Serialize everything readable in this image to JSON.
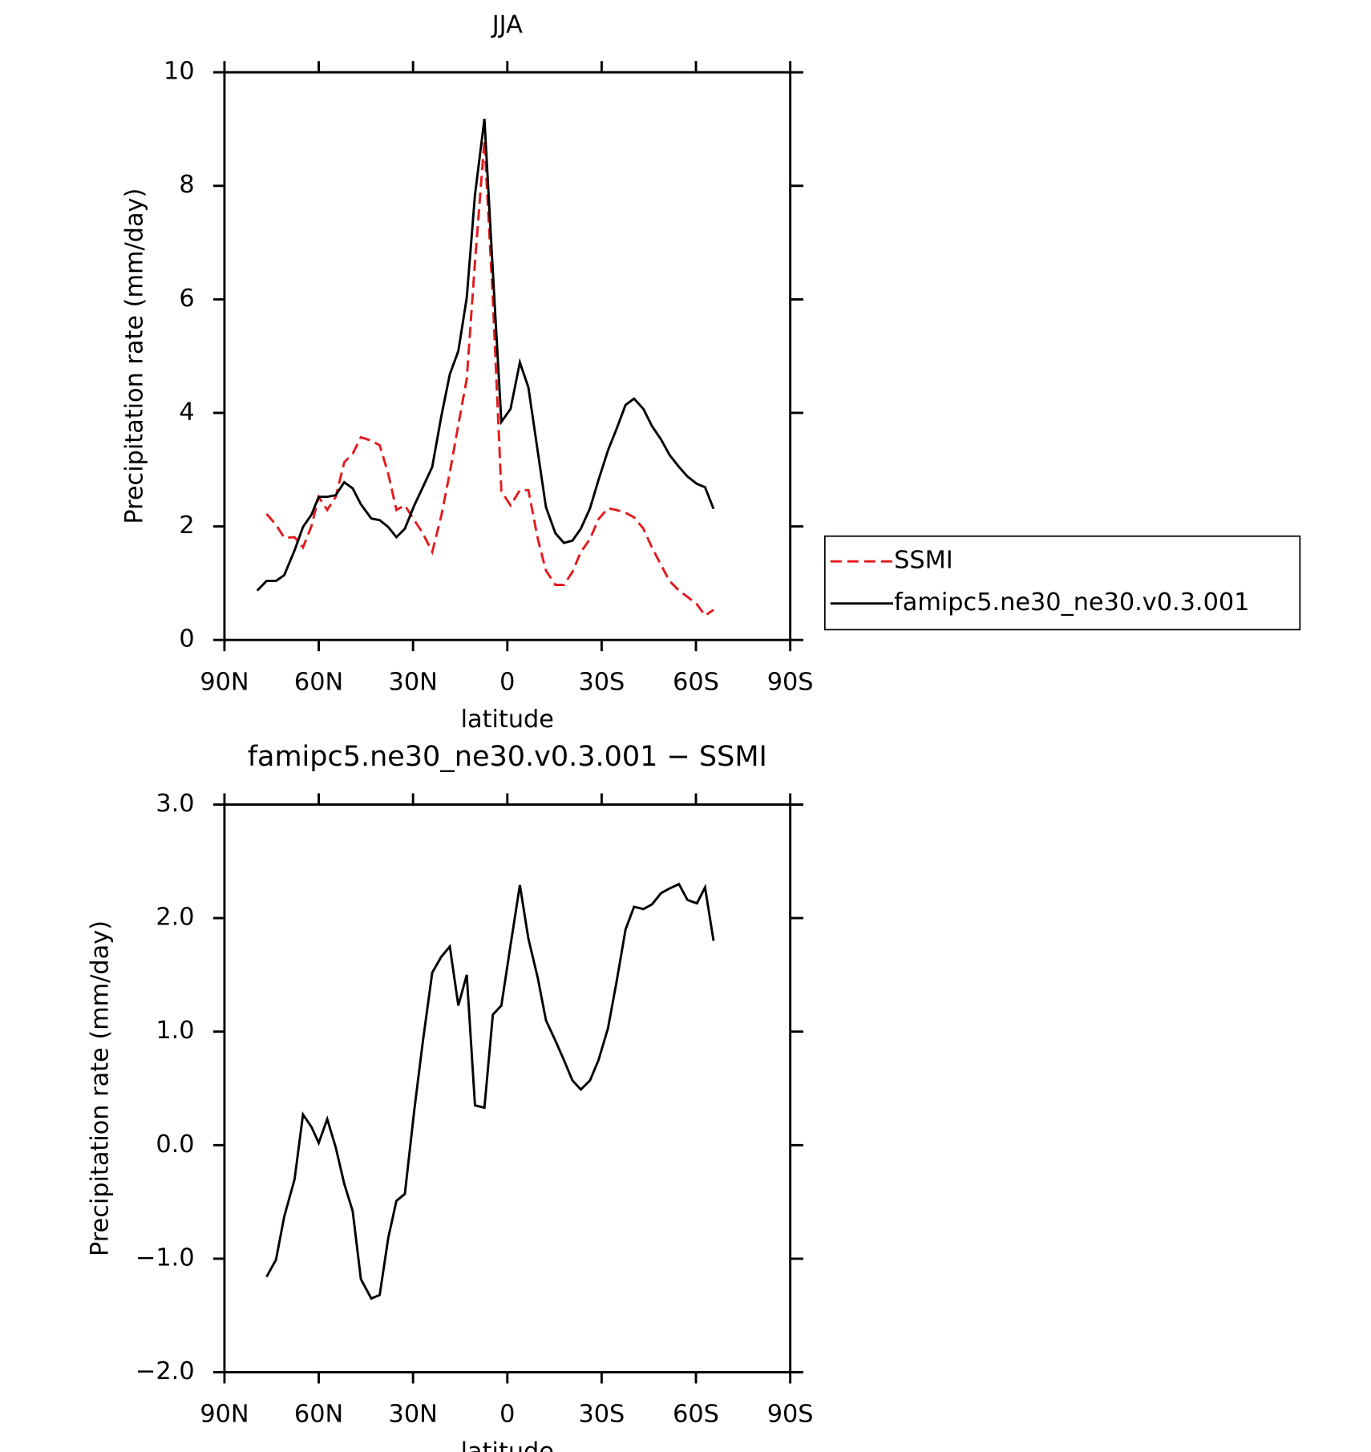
{
  "chart_data": [
    {
      "type": "line",
      "title": "JJA",
      "xlabel": "latitude",
      "ylabel": "Precipitation rate (mm/day)",
      "xlim": [
        90,
        -90
      ],
      "xticks": [
        {
          "value": 90,
          "label": "90N"
        },
        {
          "value": 60,
          "label": "60N"
        },
        {
          "value": 30,
          "label": "30N"
        },
        0,
        {
          "value": -30,
          "label": "30S"
        },
        {
          "value": -60,
          "label": "60S"
        },
        {
          "value": -90,
          "label": "90S"
        }
      ],
      "ylim": [
        0,
        10
      ],
      "yticks": [
        0,
        2,
        4,
        6,
        8,
        10
      ],
      "legend": "outside right",
      "x": [
        79.6,
        76.6,
        73.6,
        71.0,
        67.7,
        65.0,
        62.3,
        60.0,
        57.3,
        54.6,
        51.9,
        49.2,
        46.6,
        43.3,
        40.6,
        37.9,
        35.3,
        32.6,
        29.6,
        26.9,
        23.9,
        21.0,
        18.3,
        15.6,
        12.9,
        10.3,
        7.3,
        4.6,
        1.9,
        -1.0,
        -4.0,
        -6.7,
        -9.7,
        -12.3,
        -15.3,
        -18.0,
        -20.7,
        -23.4,
        -26.3,
        -29.0,
        -32.0,
        -34.7,
        -37.6,
        -40.3,
        -43.3,
        -46.0,
        -48.9,
        -51.6,
        -54.6,
        -57.3,
        -60.3,
        -62.9,
        -65.6
      ],
      "series": [
        {
          "name": "SSMI",
          "color": "#e41a1c",
          "dashed": true,
          "values": [
            null,
            2.22,
            2.03,
            1.8,
            1.81,
            1.63,
            2.01,
            2.52,
            2.29,
            2.52,
            3.13,
            3.28,
            3.57,
            3.51,
            3.43,
            2.93,
            2.29,
            2.37,
            2.11,
            1.88,
            1.55,
            2.19,
            2.95,
            3.79,
            4.6,
            6.66,
            8.8,
            6.0,
            2.62,
            2.37,
            2.64,
            2.64,
            1.78,
            1.22,
            0.97,
            0.97,
            1.2,
            1.55,
            1.78,
            2.13,
            2.32,
            2.29,
            2.24,
            2.16,
            1.96,
            1.63,
            1.32,
            1.04,
            0.87,
            0.76,
            0.63,
            0.43,
            0.53
          ]
        },
        {
          "name": "famipc5.ne30_ne30.v0.3.001",
          "color": "#000000",
          "dashed": false,
          "values": [
            0.87,
            1.04,
            1.04,
            1.14,
            1.58,
            1.99,
            2.21,
            2.52,
            2.52,
            2.55,
            2.78,
            2.67,
            2.39,
            2.14,
            2.11,
            1.99,
            1.81,
            1.96,
            2.37,
            2.69,
            3.05,
            3.94,
            4.68,
            5.09,
            6.03,
            7.84,
            9.18,
            6.49,
            3.84,
            4.07,
            4.89,
            4.45,
            3.31,
            2.34,
            1.88,
            1.71,
            1.75,
            1.96,
            2.32,
            2.82,
            3.34,
            3.71,
            4.14,
            4.25,
            4.07,
            3.77,
            3.53,
            3.26,
            3.05,
            2.88,
            2.75,
            2.69,
            2.31
          ]
        }
      ]
    },
    {
      "type": "line",
      "title": "famipc5.ne30_ne30.v0.3.001 − SSMI",
      "xlabel": "latitude",
      "ylabel": "Precipitation rate (mm/day)",
      "xlim": [
        90,
        -90
      ],
      "xticks": [
        {
          "value": 90,
          "label": "90N"
        },
        {
          "value": 60,
          "label": "60N"
        },
        {
          "value": 30,
          "label": "30N"
        },
        0,
        {
          "value": -30,
          "label": "30S"
        },
        {
          "value": -60,
          "label": "60S"
        },
        {
          "value": -90,
          "label": "90S"
        }
      ],
      "ylim": [
        -2,
        3
      ],
      "yticks": [
        {
          "value": 3,
          "label": "3.0"
        },
        {
          "value": 2,
          "label": "2.0"
        },
        {
          "value": 1,
          "label": "1.0"
        },
        {
          "value": 0,
          "label": "0.0"
        },
        {
          "value": -1,
          "label": "−1.0"
        },
        {
          "value": -2,
          "label": "−2.0"
        }
      ],
      "x": [
        79.6,
        76.6,
        73.6,
        71.0,
        67.7,
        65.0,
        62.3,
        60.0,
        57.3,
        54.6,
        51.9,
        49.2,
        46.6,
        43.3,
        40.6,
        37.9,
        35.3,
        32.6,
        29.6,
        26.9,
        23.9,
        21.0,
        18.3,
        15.6,
        12.9,
        10.3,
        7.3,
        4.6,
        1.9,
        -1.0,
        -4.0,
        -6.7,
        -9.7,
        -12.3,
        -15.3,
        -18.0,
        -20.7,
        -23.4,
        -26.3,
        -29.0,
        -32.0,
        -34.7,
        -37.6,
        -40.3,
        -43.3,
        -46.0,
        -48.9,
        -51.6,
        -54.6,
        -57.3,
        -60.3,
        -62.9,
        -65.6
      ],
      "series": [
        {
          "color": "#000000",
          "dashed": false,
          "values": [
            null,
            -1.16,
            -1.01,
            -0.63,
            -0.3,
            0.27,
            0.16,
            0.02,
            0.23,
            -0.02,
            -0.34,
            -0.58,
            -1.18,
            -1.35,
            -1.32,
            -0.82,
            -0.49,
            -0.43,
            0.31,
            0.91,
            1.52,
            1.66,
            1.75,
            1.23,
            1.5,
            0.35,
            0.33,
            1.15,
            1.23,
            1.76,
            2.29,
            1.82,
            1.47,
            1.1,
            0.92,
            0.75,
            0.57,
            0.49,
            0.57,
            0.75,
            1.03,
            1.43,
            1.9,
            2.1,
            2.08,
            2.12,
            2.22,
            2.26,
            2.3,
            2.16,
            2.13,
            2.27,
            1.8
          ]
        }
      ]
    }
  ]
}
